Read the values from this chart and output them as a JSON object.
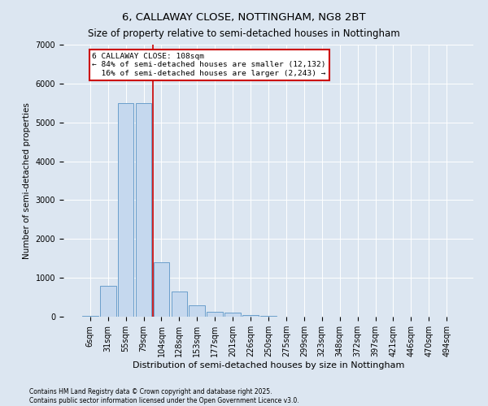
{
  "title": "6, CALLAWAY CLOSE, NOTTINGHAM, NG8 2BT",
  "subtitle": "Size of property relative to semi-detached houses in Nottingham",
  "xlabel": "Distribution of semi-detached houses by size in Nottingham",
  "ylabel": "Number of semi-detached properties",
  "categories": [
    "6sqm",
    "31sqm",
    "55sqm",
    "79sqm",
    "104sqm",
    "128sqm",
    "153sqm",
    "177sqm",
    "201sqm",
    "226sqm",
    "250sqm",
    "275sqm",
    "299sqm",
    "323sqm",
    "348sqm",
    "372sqm",
    "397sqm",
    "421sqm",
    "446sqm",
    "470sqm",
    "494sqm"
  ],
  "values": [
    30,
    800,
    5500,
    5500,
    1400,
    650,
    300,
    130,
    100,
    50,
    30,
    0,
    0,
    0,
    0,
    0,
    0,
    0,
    0,
    0,
    0
  ],
  "bar_color": "#c5d8ee",
  "bar_edge_color": "#6a9fcb",
  "vline_color": "#cc0000",
  "annotation_text": "6 CALLAWAY CLOSE: 108sqm\n← 84% of semi-detached houses are smaller (12,132)\n  16% of semi-detached houses are larger (2,243) →",
  "annotation_box_color": "#cc0000",
  "ylim": [
    0,
    7000
  ],
  "yticks": [
    0,
    1000,
    2000,
    3000,
    4000,
    5000,
    6000,
    7000
  ],
  "bg_color": "#dce6f1",
  "plot_bg_color": "#dce6f1",
  "footer": "Contains HM Land Registry data © Crown copyright and database right 2025.\nContains public sector information licensed under the Open Government Licence v3.0.",
  "title_fontsize": 9.5,
  "xlabel_fontsize": 8,
  "ylabel_fontsize": 7.5,
  "tick_fontsize": 7,
  "annotation_fontsize": 6.8,
  "footer_fontsize": 5.5
}
